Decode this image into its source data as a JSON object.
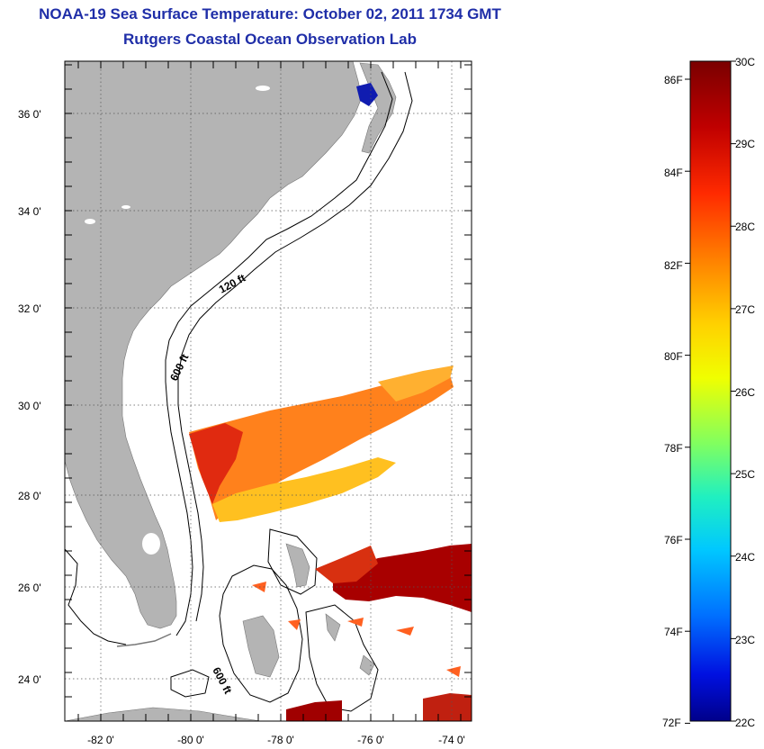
{
  "header": {
    "title": "NOAA-19 Sea Surface Temperature:  October 02, 2011 1734 GMT",
    "subtitle": "Rutgers Coastal Ocean Observation Lab"
  },
  "map": {
    "lat_labels": [
      "36 0'",
      "34 0'",
      "32 0'",
      "30 0'",
      "28 0'",
      "26 0'",
      "24 0'"
    ],
    "lon_labels": [
      "-82 0'",
      "-80 0'",
      "-78 0'",
      "-76 0'",
      "-74 0'"
    ],
    "contour_labels": [
      "120 ft",
      "600 ft",
      "600 ft"
    ],
    "land_color": "#b4b4b4"
  },
  "colorbar": {
    "celsius": [
      "30C",
      "29C",
      "28C",
      "27C",
      "26C",
      "25C",
      "24C",
      "23C",
      "22C"
    ],
    "fahrenheit": [
      "86F",
      "84F",
      "82F",
      "80F",
      "78F",
      "76F",
      "74F",
      "72F"
    ]
  }
}
